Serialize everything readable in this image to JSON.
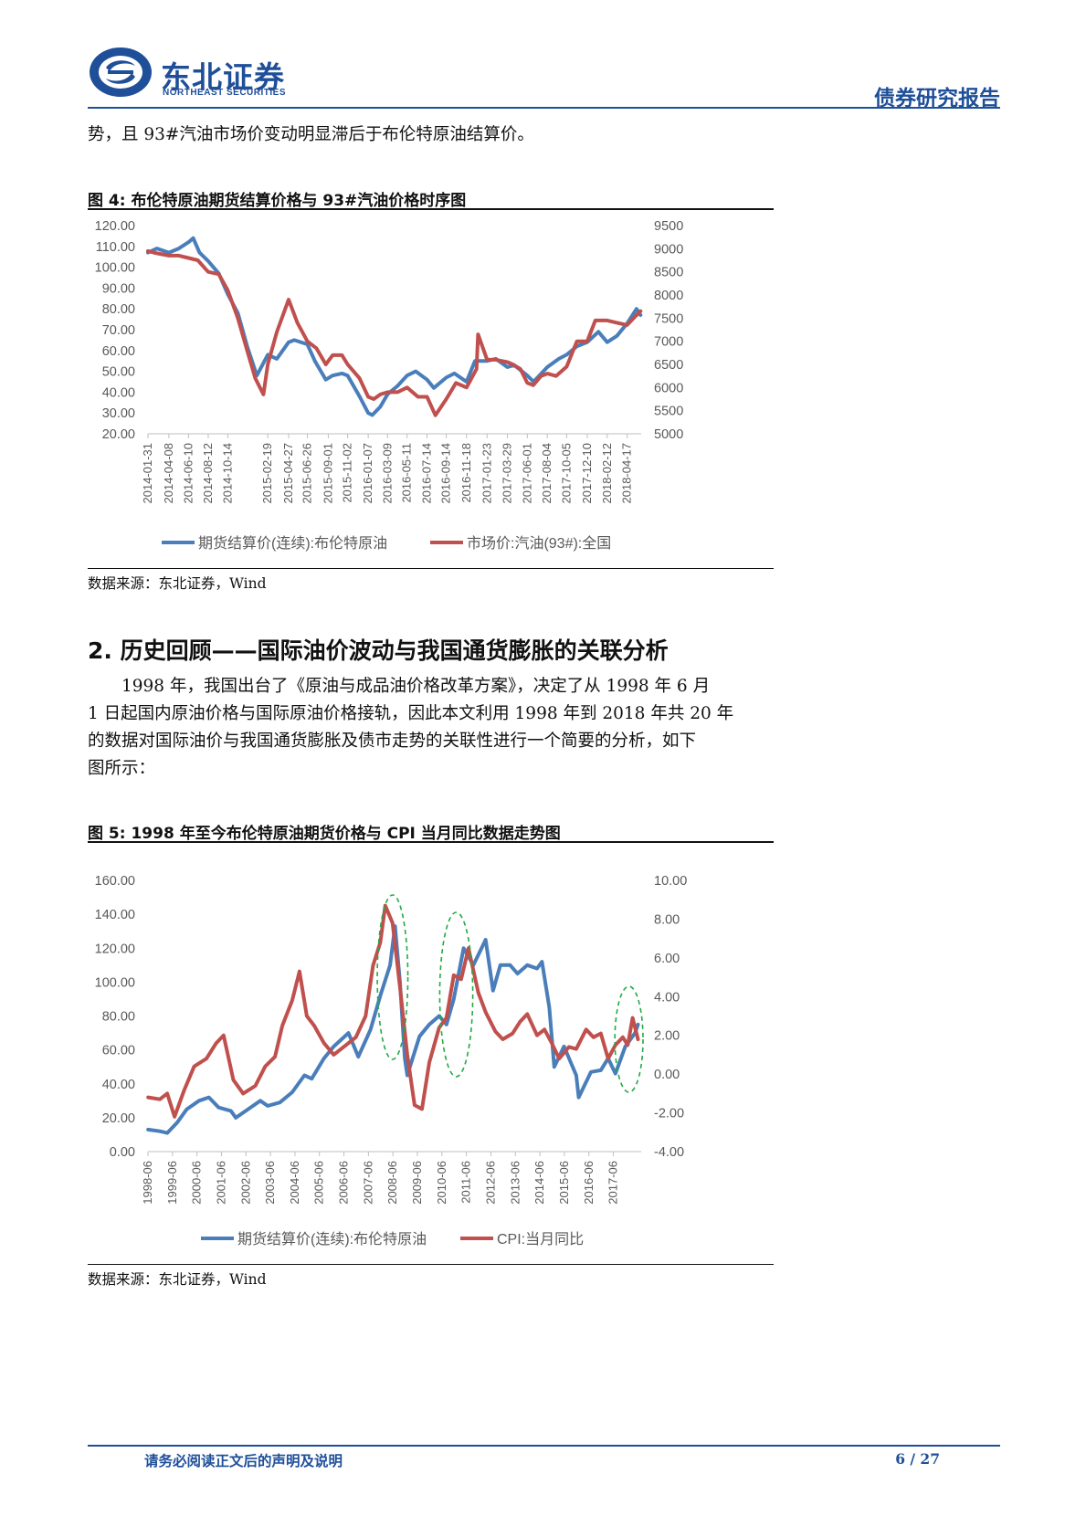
{
  "header": {
    "brand_cn": "东北证券",
    "brand_en": "NORTHEAST SECURITIES",
    "report_type": "债券研究报告"
  },
  "intro_text": "势，且 93#汽油市场价变动明显滞后于布伦特原油结算价。",
  "figure4": {
    "title": "图  4:  布伦特原油期货结算价格与 93#汽油价格时序图",
    "source": "数据来源：东北证券，Wind"
  },
  "section2": {
    "title": "2.  历史回顾——国际油价波动与我国通货膨胀的关联分析",
    "paragraph_lines": [
      "1998 年，我国出台了《原油与成品油价格改革方案》，决定了从 1998 年 6 月",
      "1 日起国内原油价格与国际原油价格接轨，因此本文利用 1998 年到 2018 年共 20 年",
      "的数据对国际油价与我国通货膨胀及债市走势的关联性进行一个简要的分析，如下",
      "图所示："
    ]
  },
  "figure5": {
    "title": "图  5:  1998 年至今布伦特原油期货价格与 CPI 当月同比数据走势图",
    "source": "数据来源：东北证券，Wind"
  },
  "footer": {
    "note": "请务必阅读正文后的声明及说明",
    "page": "6 / 27"
  },
  "chart_data": [
    {
      "type": "line",
      "dual_axis": true,
      "x_tick_labels": [
        "2014-01-31",
        "2014-04-08",
        "2014-06-10",
        "2014-08-12",
        "2014-10-14",
        "2015-02-19",
        "2015-04-27",
        "2015-06-26",
        "2015-09-01",
        "2015-11-02",
        "2016-01-07",
        "2016-03-09",
        "2016-05-11",
        "2016-07-14",
        "2016-09-14",
        "2016-11-18",
        "2017-01-23",
        "2017-03-29",
        "2017-06-01",
        "2017-08-04",
        "2017-10-05",
        "2017-12-10",
        "2018-02-12",
        "2018-04-17"
      ],
      "y_left_ticks": [
        "120.00",
        "110.00",
        "100.00",
        "90.00",
        "80.00",
        "70.00",
        "60.00",
        "50.00",
        "40.00",
        "30.00",
        "20.00"
      ],
      "y_right_ticks": [
        "9500",
        "9000",
        "8500",
        "8000",
        "7500",
        "7000",
        "6500",
        "6000",
        "5500",
        "5000"
      ],
      "ylim_left": [
        20,
        120
      ],
      "ylim_right": [
        5000,
        9500
      ],
      "grid": false,
      "legend_position": "bottom",
      "colors": {
        "brent": "#4a7ebb",
        "gasoline": "#c0504d"
      },
      "series": [
        {
          "name": "期货结算价(连续):布伦特原油",
          "axis": "left",
          "x": [
            "2014-01-31",
            "2014-03-01",
            "2014-04-08",
            "2014-05-10",
            "2014-06-10",
            "2014-06-25",
            "2014-07-15",
            "2014-08-12",
            "2014-09-15",
            "2014-10-14",
            "2014-11-15",
            "2014-12-15",
            "2015-01-15",
            "2015-02-19",
            "2015-03-20",
            "2015-04-27",
            "2015-05-15",
            "2015-06-26",
            "2015-07-20",
            "2015-08-24",
            "2015-09-15",
            "2015-10-15",
            "2015-11-02",
            "2015-12-10",
            "2016-01-07",
            "2016-01-20",
            "2016-02-15",
            "2016-03-09",
            "2016-04-10",
            "2016-05-11",
            "2016-06-08",
            "2016-07-14",
            "2016-08-05",
            "2016-09-14",
            "2016-10-10",
            "2016-11-18",
            "2016-12-15",
            "2017-01-23",
            "2017-02-20",
            "2017-03-29",
            "2017-04-20",
            "2017-06-01",
            "2017-06-21",
            "2017-08-04",
            "2017-09-10",
            "2017-10-05",
            "2017-11-07",
            "2017-12-10",
            "2018-01-15",
            "2018-02-12",
            "2018-03-15",
            "2018-04-17",
            "2018-05-17",
            "2018-05-30"
          ],
          "y": [
            107,
            109,
            107,
            109,
            112,
            114,
            107,
            103,
            97,
            87,
            78,
            62,
            48,
            58,
            56,
            64,
            65,
            63,
            55,
            46,
            48,
            49,
            48,
            38,
            30,
            29,
            33,
            39,
            43,
            48,
            50,
            46,
            42,
            47,
            49,
            45,
            55,
            55,
            56,
            52,
            53,
            48,
            45,
            52,
            56,
            58,
            62,
            64,
            69,
            64,
            67,
            73,
            80,
            77
          ]
        },
        {
          "name": "市场价:汽油(93#):全国",
          "axis": "right",
          "x": [
            "2014-01-31",
            "2014-03-01",
            "2014-04-08",
            "2014-05-10",
            "2014-06-10",
            "2014-07-10",
            "2014-08-12",
            "2014-09-15",
            "2014-10-14",
            "2014-11-15",
            "2014-12-15",
            "2015-01-10",
            "2015-02-05",
            "2015-02-19",
            "2015-03-20",
            "2015-04-27",
            "2015-05-25",
            "2015-06-26",
            "2015-07-25",
            "2015-08-24",
            "2015-09-15",
            "2015-10-15",
            "2015-11-02",
            "2015-12-10",
            "2016-01-07",
            "2016-01-25",
            "2016-02-15",
            "2016-03-09",
            "2016-04-10",
            "2016-05-11",
            "2016-06-15",
            "2016-07-14",
            "2016-08-10",
            "2016-09-14",
            "2016-10-15",
            "2016-11-18",
            "2016-12-20",
            "2016-12-25",
            "2017-01-23",
            "2017-02-20",
            "2017-03-29",
            "2017-04-15",
            "2017-05-10",
            "2017-06-01",
            "2017-06-20",
            "2017-07-15",
            "2017-08-04",
            "2017-09-01",
            "2017-10-05",
            "2017-11-07",
            "2017-12-10",
            "2018-01-05",
            "2018-02-12",
            "2018-03-15",
            "2018-04-17",
            "2018-05-15",
            "2018-05-30"
          ],
          "y": [
            8950,
            8900,
            8850,
            8850,
            8800,
            8750,
            8500,
            8450,
            8100,
            7500,
            6800,
            6200,
            5850,
            6500,
            7200,
            7900,
            7400,
            7000,
            6850,
            6500,
            6700,
            6700,
            6500,
            6200,
            5800,
            5750,
            5850,
            5900,
            5900,
            6000,
            5800,
            5800,
            5400,
            5750,
            6100,
            6000,
            6400,
            7150,
            6600,
            6600,
            6550,
            6500,
            6400,
            6100,
            6050,
            6250,
            6300,
            6250,
            6450,
            7000,
            7000,
            7450,
            7450,
            7400,
            7350,
            7550,
            7650
          ]
        }
      ]
    },
    {
      "type": "line",
      "dual_axis": true,
      "x_tick_labels": [
        "1998-06",
        "1999-06",
        "2000-06",
        "2001-06",
        "2002-06",
        "2003-06",
        "2004-06",
        "2005-06",
        "2006-06",
        "2007-06",
        "2008-06",
        "2009-06",
        "2010-06",
        "2011-06",
        "2012-06",
        "2013-06",
        "2014-06",
        "2015-06",
        "2016-06",
        "2017-06"
      ],
      "y_left_ticks": [
        "160.00",
        "140.00",
        "120.00",
        "100.00",
        "80.00",
        "60.00",
        "40.00",
        "20.00",
        "0.00"
      ],
      "y_right_ticks": [
        "10.00",
        "8.00",
        "6.00",
        "4.00",
        "2.00",
        "0.00",
        "-2.00",
        "-4.00"
      ],
      "ylim_left": [
        0,
        160
      ],
      "ylim_right": [
        -4,
        10
      ],
      "grid": false,
      "legend_position": "bottom",
      "annotations": "green dashed ellipses around 2007-06~2008-06, 2010-06~2011-06 and 2017-06~2018-06",
      "colors": {
        "brent": "#4a7ebb",
        "cpi": "#c0504d",
        "ellipse": "#22aa44"
      },
      "series": [
        {
          "name": "期货结算价(连续):布伦特原油",
          "axis": "left",
          "x": [
            1998.42,
            1998.9,
            1999.2,
            1999.6,
            2000.0,
            2000.5,
            2000.9,
            2001.3,
            2001.8,
            2002.0,
            2002.5,
            2003.0,
            2003.3,
            2003.8,
            2004.3,
            2004.8,
            2005.1,
            2005.6,
            2006.0,
            2006.6,
            2007.0,
            2007.5,
            2007.9,
            2008.3,
            2008.5,
            2008.7,
            2008.9,
            2009.0,
            2009.5,
            2009.9,
            2010.3,
            2010.6,
            2010.9,
            2011.3,
            2011.7,
            2012.2,
            2012.5,
            2012.8,
            2013.2,
            2013.5,
            2013.9,
            2014.3,
            2014.5,
            2014.8,
            2015.0,
            2015.4,
            2015.9,
            2016.0,
            2016.5,
            2016.9,
            2017.2,
            2017.5,
            2017.9,
            2018.3,
            2018.42
          ],
          "y": [
            13,
            12,
            11,
            17,
            25,
            30,
            32,
            26,
            24,
            20,
            25,
            30,
            27,
            29,
            35,
            45,
            43,
            55,
            62,
            70,
            56,
            72,
            92,
            110,
            133,
            100,
            55,
            45,
            68,
            75,
            80,
            75,
            90,
            120,
            110,
            125,
            95,
            110,
            110,
            105,
            110,
            108,
            112,
            85,
            50,
            62,
            45,
            32,
            47,
            48,
            55,
            46,
            62,
            70,
            75
          ]
        },
        {
          "name": "CPI:当月同比",
          "axis": "right",
          "x": [
            1998.42,
            1998.9,
            1999.2,
            1999.5,
            1999.9,
            2000.3,
            2000.8,
            2001.2,
            2001.5,
            2001.9,
            2002.3,
            2002.8,
            2003.2,
            2003.6,
            2003.9,
            2004.3,
            2004.6,
            2004.9,
            2005.2,
            2005.6,
            2006.0,
            2006.5,
            2006.9,
            2007.3,
            2007.6,
            2007.9,
            2008.1,
            2008.4,
            2008.7,
            2009.0,
            2009.3,
            2009.6,
            2009.9,
            2010.3,
            2010.6,
            2010.9,
            2011.2,
            2011.5,
            2011.9,
            2012.2,
            2012.6,
            2012.9,
            2013.3,
            2013.6,
            2013.9,
            2014.3,
            2014.6,
            2014.9,
            2015.2,
            2015.6,
            2015.9,
            2016.3,
            2016.6,
            2016.9,
            2017.2,
            2017.5,
            2017.8,
            2018.0,
            2018.2,
            2018.42
          ],
          "y": [
            -1.2,
            -1.3,
            -1.0,
            -2.2,
            -0.8,
            0.4,
            0.8,
            1.6,
            2.0,
            -0.3,
            -1.0,
            -0.6,
            0.4,
            0.9,
            2.5,
            3.8,
            5.3,
            3.0,
            2.5,
            1.6,
            1.0,
            1.5,
            1.9,
            3.0,
            5.6,
            6.8,
            8.7,
            7.8,
            4.5,
            1.0,
            -1.6,
            -1.8,
            0.6,
            2.4,
            2.9,
            5.1,
            4.9,
            6.5,
            4.2,
            3.2,
            2.2,
            1.8,
            2.1,
            2.7,
            3.1,
            2.0,
            2.3,
            1.6,
            0.8,
            1.4,
            1.3,
            2.3,
            1.9,
            2.1,
            0.8,
            1.5,
            1.9,
            1.5,
            2.9,
            1.8
          ]
        }
      ]
    }
  ]
}
